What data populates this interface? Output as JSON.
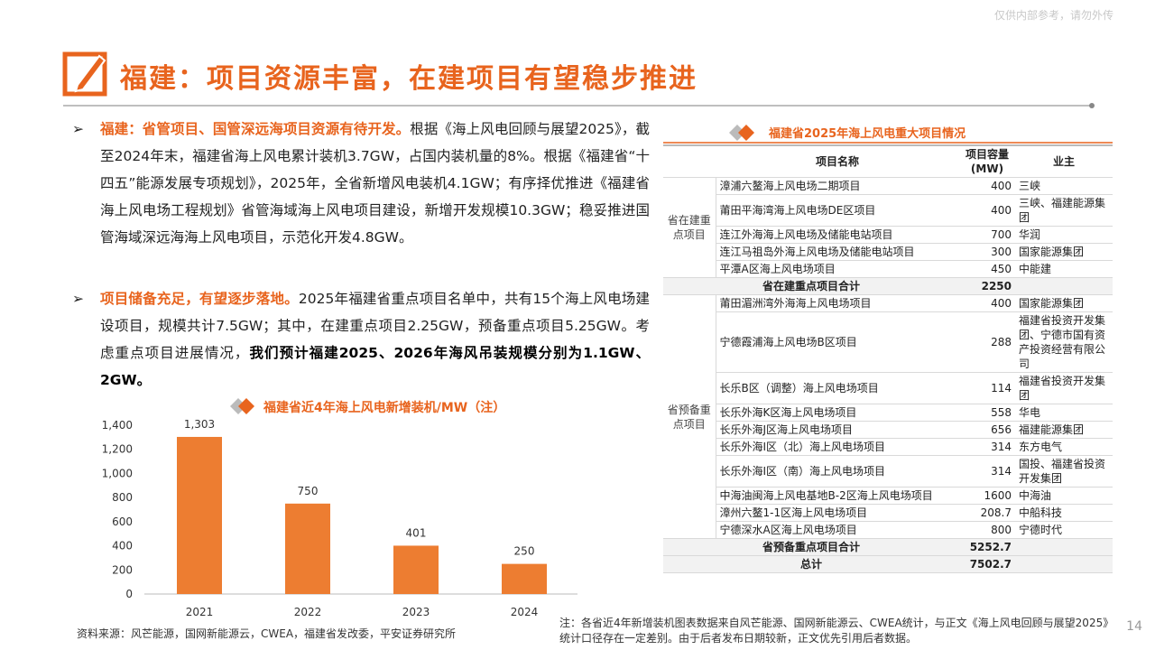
{
  "watermark": "仅供内部参考，请勿外传",
  "header": {
    "title": "福建：项目资源丰富，在建项目有望稳步推进"
  },
  "bullets": [
    {
      "bold": "福建：省管项目、国管深远海项目资源有待开发。",
      "text": "根据《海上风电回顾与展望2025》，截至2024年末，福建省海上风电累计装机3.7GW，占国内装机量的8%。根据《福建省“十四五”能源发展专项规划》，2025年，全省新增风电装机4.1GW；有序择优推进《福建省海上风电场工程规划》省管海域海上风电项目建设，新增开发规模10.3GW；稳妥推进国管海域深远海海上风电项目，示范化开发4.8GW。"
    },
    {
      "bold": "项目储备充足，有望逐步落地。",
      "text": "2025年福建省重点项目名单中，共有15个海上风电场建设项目，规模共计7.5GW；其中，在建重点项目2.25GW，预备重点项目5.25GW。考虑重点项目进展情况，",
      "emphasis": "我们预计福建2025、2026年海风吊装规模分别为1.1GW、2GW。"
    }
  ],
  "chart_data": {
    "type": "bar",
    "title": "福建省近4年海上风电新增装机/MW（注）",
    "categories": [
      "2021",
      "2022",
      "2023",
      "2024"
    ],
    "values": [
      1303,
      750,
      401,
      250
    ],
    "value_labels": [
      "1,303",
      "750",
      "401",
      "250"
    ],
    "color": "#ED7D31",
    "ylim": [
      0,
      1400
    ],
    "yticks": [
      0,
      200,
      400,
      600,
      800,
      {
        "value": 1000,
        "label": "1,000"
      },
      {
        "value": 1200,
        "label": "1,200"
      },
      {
        "value": 1400,
        "label": "1,400"
      }
    ]
  },
  "source": "资料来源：风芒能源，国网新能源云，CWEA，福建省发改委，平安证券研究所",
  "table": {
    "title": "福建省2025年海上风电重大项目情况",
    "headers": [
      "项目名称",
      "项目容量(MW)",
      "业主"
    ],
    "groups": [
      {
        "label": "省在建重点项目",
        "rows": [
          [
            "漳浦六鳌海上风电场二期项目",
            400,
            "三峡"
          ],
          [
            "莆田平海湾海上风电场DE区项目",
            400,
            "三峡、福建能源集团"
          ],
          [
            "连江外海海上风电场及储能电站项目",
            700,
            "华润"
          ],
          [
            "连江马祖岛外海上风电场及储能电站项目",
            300,
            "国家能源集团"
          ],
          [
            "平潭A区海上风电场项目",
            450,
            "中能建"
          ]
        ],
        "subtotal": {
          "label": "省在建重点项目合计",
          "value": 2250
        }
      },
      {
        "label": "省预备重点项目",
        "rows": [
          [
            "莆田湄洲湾外海海上风电场项目",
            400,
            "国家能源集团"
          ],
          [
            "宁德霞浦海上风电场B区项目",
            288,
            "福建省投资开发集团、宁德市国有资产投资经营有限公司"
          ],
          [
            "长乐B区（调整）海上风电场项目",
            114,
            "福建省投资开发集团"
          ],
          [
            "长乐外海K区海上风电场项目",
            558,
            "华电"
          ],
          [
            "长乐外海J区海上风电场项目",
            656,
            "福建能源集团"
          ],
          [
            "长乐外海I区（北）海上风电场项目",
            314,
            "东方电气"
          ],
          [
            "长乐外海I区（南）海上风电场项目",
            314,
            "国投、福建省投资开发集团"
          ],
          [
            "中海油闽海上风电基地B-2区海上风电场项目",
            1600,
            "中海油"
          ],
          [
            "漳州六鳌1-1区海上风电场项目",
            208.7,
            "中船科技"
          ],
          [
            "宁德深水A区海上风电场项目",
            800,
            "宁德时代"
          ]
        ],
        "subtotal": {
          "label": "省预备重点项目合计",
          "value": 5252.7
        }
      }
    ],
    "total": {
      "label": "总计",
      "value": 7502.7
    }
  },
  "note": "注：各省近4年新增装机图表数据来自风芒能源、国网新能源云、CWEA统计，与正文《海上风电回顾与展望2025》统计口径存在一定差别。由于后者发布日期较新，正文优先引用后者数据。",
  "page_number": "14"
}
